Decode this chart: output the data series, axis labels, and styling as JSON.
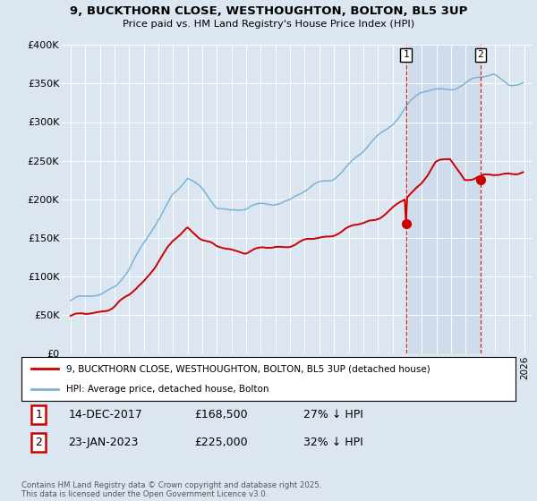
{
  "title_line1": "9, BUCKTHORN CLOSE, WESTHOUGHTON, BOLTON, BL5 3UP",
  "title_line2": "Price paid vs. HM Land Registry's House Price Index (HPI)",
  "bg_color": "#dce6f1",
  "hpi_color": "#7ab3d3",
  "price_color": "#cc0000",
  "shade_color": "#c8d9ed",
  "legend_entry1": "9, BUCKTHORN CLOSE, WESTHOUGHTON, BOLTON, BL5 3UP (detached house)",
  "legend_entry2": "HPI: Average price, detached house, Bolton",
  "m1_date_str": "14-DEC-2017",
  "m1_price": 168500,
  "m1_price_str": "£168,500",
  "m1_pct": "27% ↓ HPI",
  "m2_date_str": "23-JAN-2023",
  "m2_price": 225000,
  "m2_price_str": "£225,000",
  "m2_pct": "32% ↓ HPI",
  "footer": "Contains HM Land Registry data © Crown copyright and database right 2025.\nThis data is licensed under the Open Government Licence v3.0.",
  "ylim": [
    0,
    400000
  ],
  "ytick_vals": [
    0,
    50000,
    100000,
    150000,
    200000,
    250000,
    300000,
    350000,
    400000
  ],
  "ytick_labels": [
    "£0",
    "£50K",
    "£100K",
    "£150K",
    "£200K",
    "£250K",
    "£300K",
    "£350K",
    "£400K"
  ]
}
